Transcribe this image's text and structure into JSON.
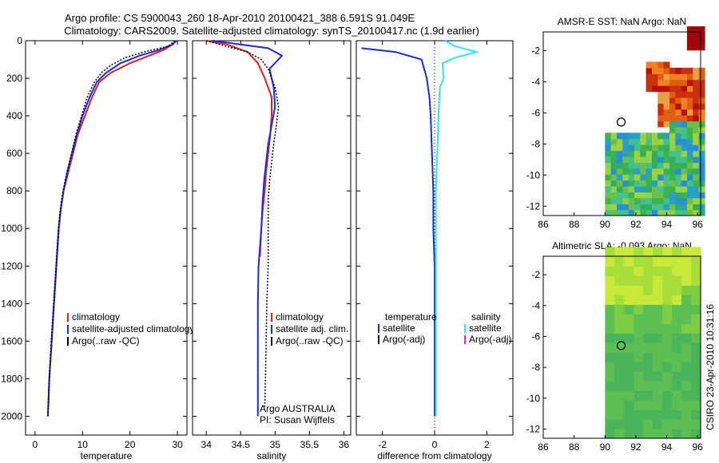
{
  "header": {
    "line1": "Argo profile: CS 5900043_260 18-Apr-2010 20100421_388 6.591S 91.049E",
    "line2": "Climatology: CARS2009. Satellite-adjusted climatology: synTS_20100417.nc (1.9d earlier)"
  },
  "colors": {
    "climatology": "#e02020",
    "satellite": "#1a2ae0",
    "argo": "#000000",
    "sal_sat": "#2ee6f0",
    "sal_argo": "#e020e0"
  },
  "chart_data": [
    {
      "type": "line",
      "name": "temperature-profile",
      "xlabel": "temperature",
      "ylabel": "",
      "xlim": [
        -2,
        32
      ],
      "ylim": [
        2100,
        0
      ],
      "xticks": [
        0,
        10,
        20,
        30
      ],
      "yticks": [
        0,
        200,
        400,
        600,
        800,
        1000,
        1200,
        1400,
        1600,
        1800,
        2000
      ],
      "legend": [
        "climatology",
        "satellite-adjusted climatology",
        "Argo(..raw -QC)"
      ],
      "series": [
        {
          "name": "climatology",
          "x": [
            29.5,
            29,
            27,
            24,
            20,
            16,
            13.5,
            12,
            10.5,
            9,
            8,
            7,
            6,
            5.4,
            5,
            4.5,
            4,
            3.5,
            3,
            2.8
          ],
          "y": [
            0,
            20,
            50,
            80,
            120,
            170,
            220,
            300,
            400,
            500,
            600,
            700,
            800,
            900,
            1000,
            1200,
            1400,
            1600,
            1800,
            1950
          ]
        },
        {
          "name": "satellite",
          "x": [
            29.8,
            29,
            26,
            22,
            18,
            15,
            13,
            11.5,
            10,
            8.8,
            7.8,
            6.8,
            6,
            5.4,
            5,
            4.5,
            4,
            3.5,
            3,
            2.7
          ],
          "y": [
            0,
            20,
            50,
            80,
            120,
            170,
            220,
            300,
            400,
            500,
            600,
            700,
            800,
            900,
            1000,
            1200,
            1400,
            1600,
            1800,
            2000
          ]
        },
        {
          "name": "argo",
          "x": [
            29.5,
            28,
            23,
            19,
            16,
            14,
            12.5,
            11,
            9.8,
            8.6,
            7.7,
            6.7,
            5.9,
            5.3,
            4.9,
            4.4,
            3.9,
            3.4,
            3,
            2.7
          ],
          "y": [
            0,
            30,
            60,
            90,
            130,
            170,
            220,
            300,
            400,
            500,
            600,
            700,
            800,
            900,
            1000,
            1200,
            1400,
            1600,
            1800,
            2000
          ]
        }
      ]
    },
    {
      "type": "line",
      "name": "salinity-profile",
      "xlabel": "salinity",
      "xlim": [
        33.8,
        36.1
      ],
      "ylim": [
        2100,
        0
      ],
      "xticks": [
        34,
        34.5,
        35,
        35.5,
        36
      ],
      "xtick_labels": [
        "34",
        "34.5",
        "35",
        "35.5",
        "36"
      ],
      "legend": [
        "climatology",
        "satellite adj. clim.",
        "Argo(..raw -QC)"
      ],
      "annotation": [
        "Argo AUSTRALIA",
        "PI: Susan Wijffels"
      ],
      "series": [
        {
          "name": "climatology",
          "x": [
            34.0,
            34.3,
            34.6,
            34.75,
            34.85,
            34.95,
            34.95,
            34.93,
            34.9,
            34.87,
            34.85,
            34.82,
            34.8,
            34.78
          ],
          "y": [
            0,
            20,
            60,
            120,
            200,
            300,
            400,
            500,
            600,
            700,
            800,
            900,
            1000,
            1150
          ]
        },
        {
          "name": "satellite",
          "x": [
            34.1,
            34.5,
            34.9,
            35.1,
            34.92,
            34.98,
            35.0,
            34.95,
            34.9,
            34.87,
            34.84,
            34.82,
            34.8,
            34.78,
            34.76,
            34.75,
            34.75,
            34.75,
            34.75
          ],
          "y": [
            0,
            20,
            40,
            80,
            150,
            250,
            350,
            450,
            550,
            650,
            750,
            850,
            1000,
            1100,
            1200,
            1400,
            1600,
            1800,
            2000
          ]
        },
        {
          "name": "argo",
          "x": [
            34.0,
            34.3,
            34.6,
            34.8,
            34.9,
            35.0,
            35.05,
            35.02,
            34.98,
            34.95,
            34.92,
            34.9,
            34.9,
            34.9,
            34.88,
            34.87,
            34.86,
            34.85
          ],
          "y": [
            0,
            30,
            60,
            100,
            150,
            250,
            350,
            450,
            550,
            650,
            750,
            850,
            1000,
            1200,
            1400,
            1600,
            1800,
            1950
          ]
        }
      ]
    },
    {
      "type": "line",
      "name": "difference-profile",
      "xlabel": "difference from climatology",
      "xlim": [
        -3,
        3
      ],
      "ylim": [
        2100,
        0
      ],
      "xticks": [
        -2,
        0,
        2
      ],
      "legend": [
        "temperature",
        "satellite",
        "Argo(-adj)",
        "salinity",
        "satellite",
        "Argo(-adj)"
      ],
      "series": [
        {
          "name": "temperature satellite",
          "x": [
            -2.8,
            -1.5,
            -0.5,
            -0.3,
            -0.25,
            -0.2,
            -0.15,
            -0.1,
            -0.05,
            -0.05,
            0,
            0,
            0
          ],
          "y": [
            40,
            60,
            100,
            200,
            250,
            300,
            400,
            600,
            800,
            1000,
            1200,
            1600,
            2000
          ]
        },
        {
          "name": "salinity satellite",
          "x": [
            0.4,
            0.8,
            1.6,
            0.8,
            0.3,
            0.35,
            0.2,
            0.15,
            0.1,
            0.05,
            0.05,
            0.05,
            0.05
          ],
          "y": [
            0,
            30,
            60,
            90,
            120,
            200,
            250,
            400,
            600,
            800,
            1200,
            1600,
            2000
          ]
        }
      ]
    },
    {
      "type": "heatmap",
      "name": "amsr-sst-map",
      "title": "AMSR-E SST: NaN Argo: NaN",
      "xlim": [
        86,
        96.2
      ],
      "ylim": [
        -12.6,
        -0.8
      ],
      "xticks": [
        86,
        88,
        90,
        92,
        94,
        96
      ],
      "yticks": [
        -2,
        -4,
        -6,
        -8,
        -10,
        -12
      ],
      "argo_position": {
        "lon": 91.05,
        "lat": -6.59
      }
    },
    {
      "type": "heatmap",
      "name": "altimetric-sla-map",
      "title": "Altimetric SLA: -0.093 Argo: NaN",
      "xlim": [
        86,
        96.2
      ],
      "ylim": [
        -12.6,
        -0.8
      ],
      "xticks": [
        86,
        88,
        90,
        92,
        94,
        96
      ],
      "yticks": [
        -2,
        -4,
        -6,
        -8,
        -10,
        -12
      ],
      "argo_position": {
        "lon": 91.05,
        "lat": -6.59
      }
    }
  ],
  "side_label": "CSIRO 23-Apr-2010 10:31:16"
}
